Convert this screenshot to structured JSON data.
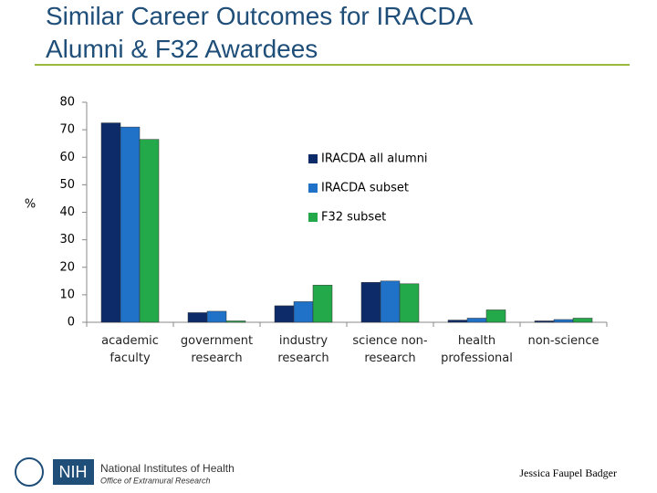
{
  "chart_data": {
    "type": "bar",
    "title": "Similar Career Outcomes for IRACDA Alumni & F32 Awardees",
    "ylabel": "%",
    "categories": [
      "academic faculty",
      "government research",
      "industry research",
      "science non-research",
      "health professional",
      "non-science"
    ],
    "series": [
      {
        "name": "IRACDA all alumni",
        "color": "#0d2b68",
        "values": [
          72.5,
          3.5,
          6,
          14.5,
          0.8,
          0.5
        ]
      },
      {
        "name": "IRACDA subset",
        "color": "#1f72c8",
        "values": [
          71,
          4,
          7.5,
          15,
          1.5,
          1
        ]
      },
      {
        "name": "F32 subset",
        "color": "#23a84a",
        "values": [
          66.5,
          0.5,
          13.5,
          14,
          4.5,
          1.5
        ]
      }
    ],
    "ylim": [
      0,
      80
    ],
    "yticks": [
      0,
      10,
      20,
      30,
      40,
      50,
      60,
      70,
      80
    ]
  },
  "footer": {
    "logo": "NIH",
    "org": "National Institutes of Health",
    "office": "Office of Extramural Research",
    "author": "Jessica Faupel Badger"
  }
}
